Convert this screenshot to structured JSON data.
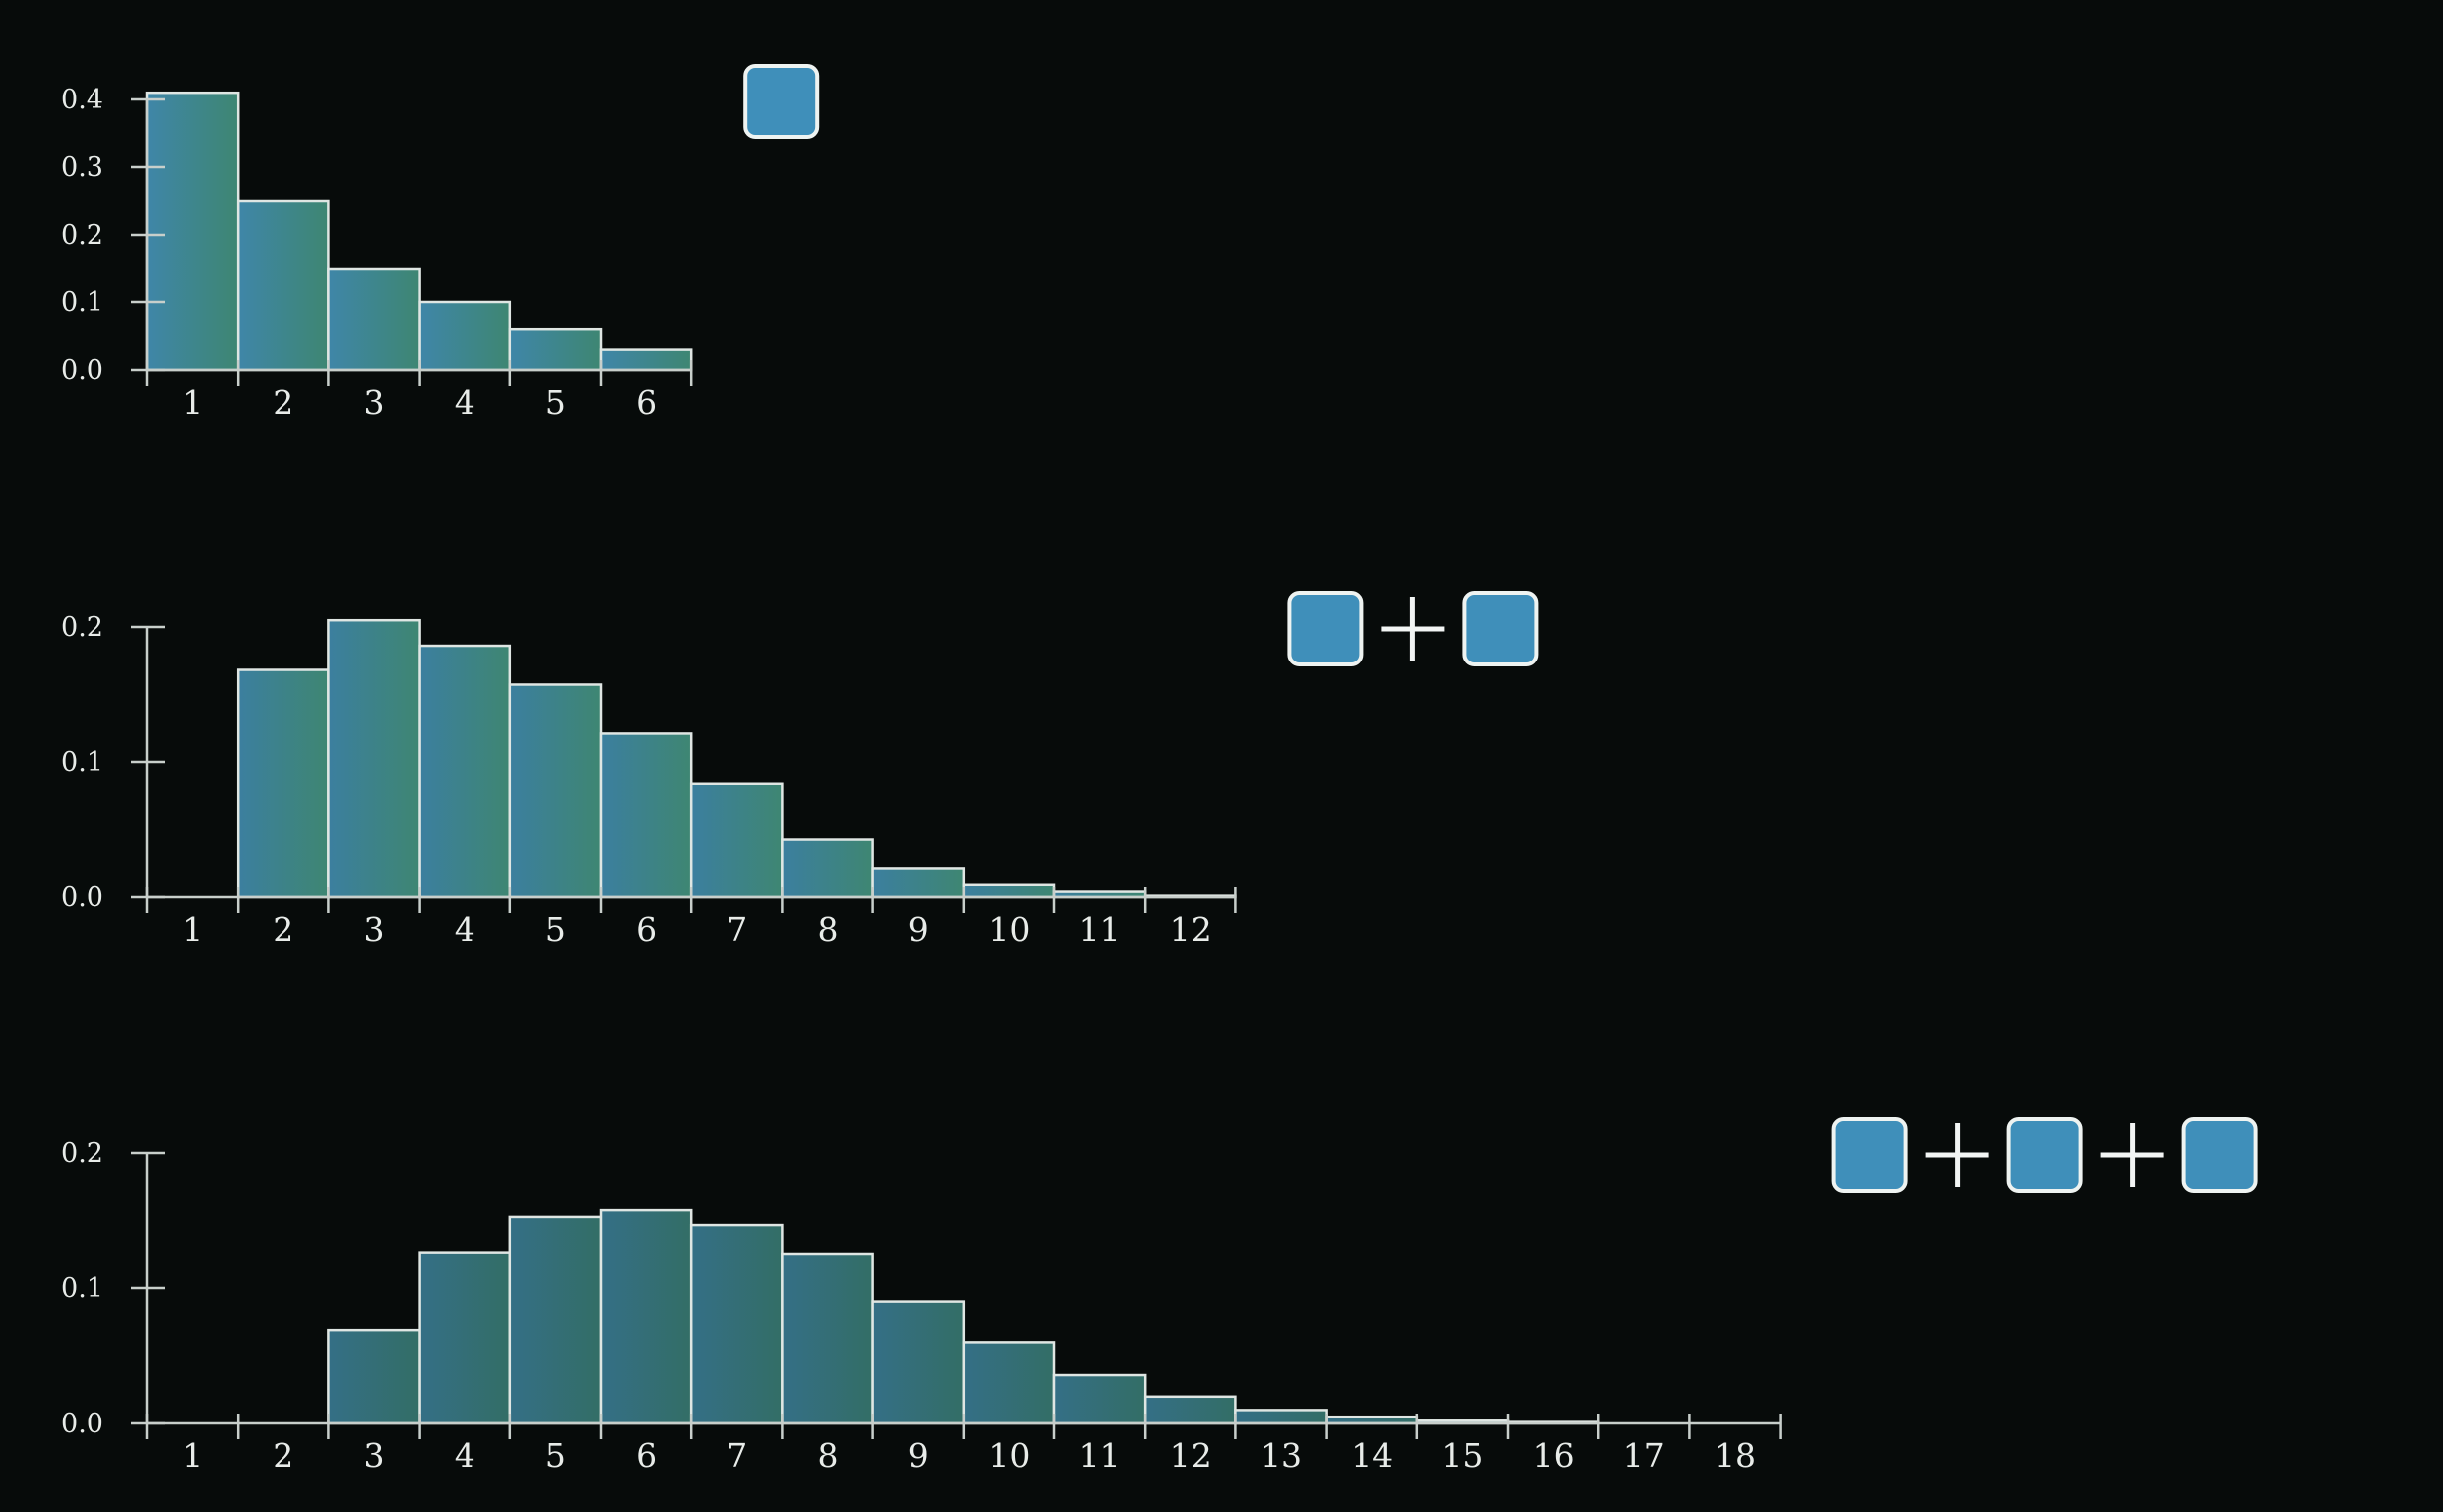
{
  "chart_data": [
    {
      "type": "bar",
      "categories": [
        "1",
        "2",
        "3",
        "4",
        "5",
        "6"
      ],
      "values": [
        0.41,
        0.25,
        0.15,
        0.1,
        0.06,
        0.03
      ],
      "ylim": [
        0,
        0.4
      ],
      "yticks": [
        "0.0",
        "0.1",
        "0.2",
        "0.3",
        "0.4"
      ],
      "dice_count": 1,
      "color_top": "#3f86a8",
      "color_bottom": "#3e8672"
    },
    {
      "type": "bar",
      "categories": [
        "1",
        "2",
        "3",
        "4",
        "5",
        "6",
        "7",
        "8",
        "9",
        "10",
        "11",
        "12"
      ],
      "values": [
        0.0,
        0.168,
        0.205,
        0.186,
        0.157,
        0.121,
        0.084,
        0.043,
        0.021,
        0.009,
        0.004,
        0.001
      ],
      "ylim": [
        0,
        0.2
      ],
      "yticks": [
        "0.0",
        "0.1",
        "0.2"
      ],
      "dice_count": 2,
      "color_top": "#3c7f9f",
      "color_bottom": "#3e8672"
    },
    {
      "type": "bar",
      "categories": [
        "1",
        "2",
        "3",
        "4",
        "5",
        "6",
        "7",
        "8",
        "9",
        "10",
        "11",
        "12",
        "13",
        "14",
        "15",
        "16",
        "17",
        "18"
      ],
      "values": [
        0.0,
        0.0,
        0.069,
        0.126,
        0.153,
        0.158,
        0.147,
        0.125,
        0.09,
        0.06,
        0.036,
        0.02,
        0.01,
        0.005,
        0.002,
        0.001,
        0.0,
        0.0
      ],
      "ylim": [
        0,
        0.2
      ],
      "yticks": [
        "0.0",
        "0.1",
        "0.2"
      ],
      "dice_count": 3,
      "color_top": "#346f86",
      "color_bottom": "#336e66"
    }
  ],
  "die_color": "#3f8fba"
}
